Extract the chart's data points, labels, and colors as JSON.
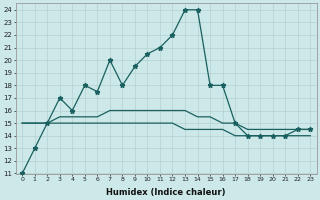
{
  "xlabel": "Humidex (Indice chaleur)",
  "background_color": "#cce8e8",
  "grid_color": "#b0d0d0",
  "line_color": "#1a6060",
  "x_values": [
    0,
    1,
    2,
    3,
    4,
    5,
    6,
    7,
    8,
    9,
    10,
    11,
    12,
    13,
    14,
    15,
    16,
    17,
    18,
    19,
    20,
    21,
    22,
    23
  ],
  "line_jagged": [
    11,
    13,
    15,
    17,
    16,
    18,
    17.5,
    20,
    18,
    19.5,
    20.5,
    21,
    22,
    24,
    24,
    18,
    18,
    15,
    14,
    14,
    14,
    14,
    14.5,
    14.5
  ],
  "line_upper_smooth": [
    15,
    15,
    15,
    15.5,
    15.5,
    15.5,
    15.5,
    16,
    16,
    16,
    16,
    16,
    16,
    16,
    15.5,
    15.5,
    15,
    15,
    14.5,
    14.5,
    14.5,
    14.5,
    14.5,
    14.5
  ],
  "line_lower_smooth": [
    15,
    15,
    15,
    15,
    15,
    15,
    15,
    15,
    15,
    15,
    15,
    15,
    15,
    14.5,
    14.5,
    14.5,
    14.5,
    14,
    14,
    14,
    14,
    14,
    14,
    14
  ],
  "ylim": [
    11,
    24.5
  ],
  "xlim": [
    -0.5,
    23.5
  ],
  "yticks": [
    11,
    12,
    13,
    14,
    15,
    16,
    17,
    18,
    19,
    20,
    21,
    22,
    23,
    24
  ],
  "xticks": [
    0,
    1,
    2,
    3,
    4,
    5,
    6,
    7,
    8,
    9,
    10,
    11,
    12,
    13,
    14,
    15,
    16,
    17,
    18,
    19,
    20,
    21,
    22,
    23
  ]
}
